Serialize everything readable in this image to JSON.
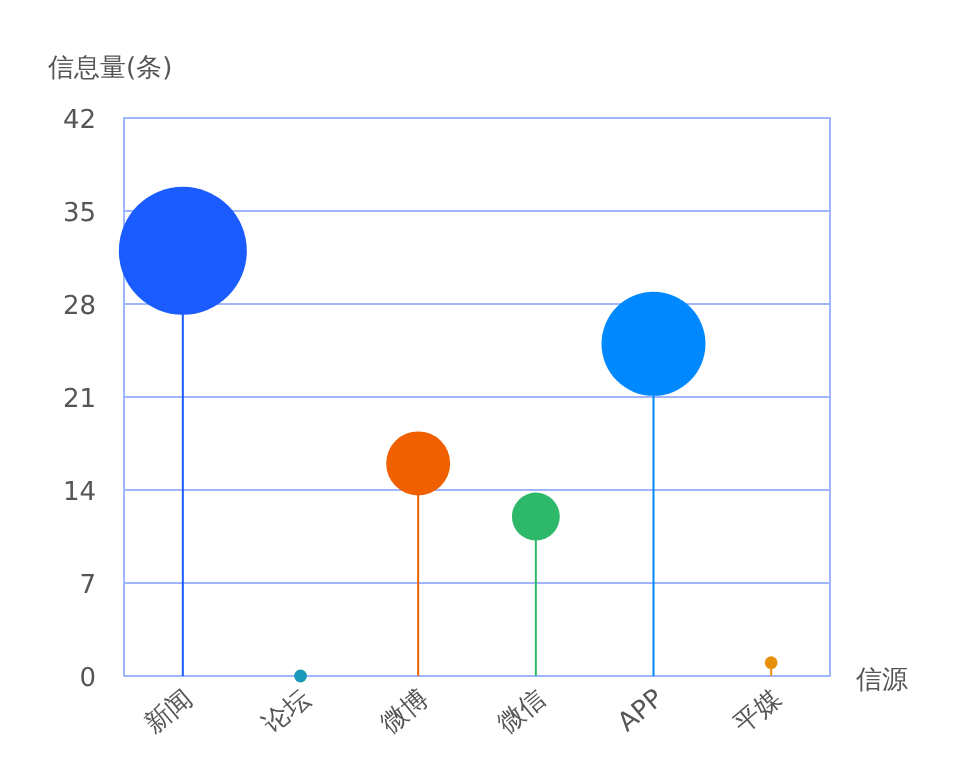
{
  "chart_data": {
    "type": "bubble",
    "ylabel": "信息量(条)",
    "xlabel": "信源",
    "categories": [
      "新闻",
      "论坛",
      "微博",
      "微信",
      "APP",
      "平媒"
    ],
    "values": [
      32,
      0,
      16,
      12,
      25,
      1
    ],
    "sizes": [
      1,
      0.01,
      0.25,
      0.14,
      0.66,
      0.01
    ],
    "colors": [
      "#1a5cff",
      "#1a9ab8",
      "#f06000",
      "#2db86a",
      "#0088ff",
      "#e8900a"
    ],
    "ylim": [
      0,
      42
    ],
    "yticks": [
      0,
      7,
      14,
      21,
      28,
      35,
      42
    ],
    "grid": "y"
  }
}
